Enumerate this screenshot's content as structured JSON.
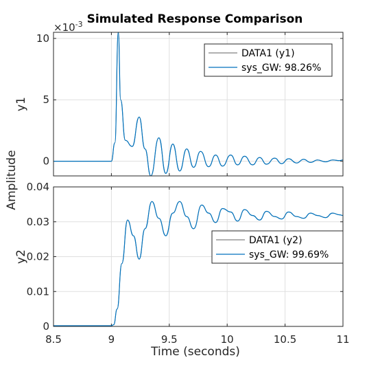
{
  "chart_data": [
    {
      "type": "line",
      "title": "Simulated Response Comparison",
      "xlabel": "Time (seconds)",
      "shared_ylabel": "Amplitude",
      "ylabel": "y1",
      "y_exponent_label": "×10",
      "y_exponent_power": "-3",
      "xlim": [
        8.5,
        11
      ],
      "ylim": [
        -1.2,
        10.5
      ],
      "xticks": [
        8.5,
        9,
        9.5,
        10,
        10.5,
        11
      ],
      "yticks": [
        0,
        5,
        10
      ],
      "ytick_labels": [
        "0",
        "5",
        "10"
      ],
      "grid": true,
      "legend_position": "top-right",
      "series": [
        {
          "name": "DATA1 (y1)",
          "color": "#808080",
          "x": [
            8.5,
            9.0,
            9.03,
            9.06,
            9.08,
            9.12,
            9.18,
            9.24,
            9.29,
            9.34,
            9.41,
            9.47,
            9.53,
            9.59,
            9.65,
            9.71,
            9.77,
            9.84,
            9.9,
            9.96,
            10.03,
            10.09,
            10.15,
            10.22,
            10.28,
            10.34,
            10.41,
            10.47,
            10.53,
            10.6,
            10.66,
            10.72,
            10.78,
            10.85,
            10.91,
            10.97,
            11.0
          ],
          "y": [
            0,
            0,
            1.5,
            10.5,
            5.0,
            1.7,
            1.2,
            3.6,
            1.0,
            -1.2,
            1.9,
            -1.0,
            1.4,
            -0.8,
            1.0,
            -0.5,
            0.8,
            -0.45,
            0.5,
            -0.4,
            0.5,
            -0.3,
            0.4,
            -0.3,
            0.3,
            -0.25,
            0.25,
            -0.2,
            0.2,
            -0.15,
            0.15,
            -0.1,
            0.1,
            -0.05,
            0.1,
            0.05,
            0.1
          ]
        },
        {
          "name": "sys_GW: 98.26%",
          "color": "#0072BD",
          "x": [
            8.5,
            9.0,
            9.03,
            9.06,
            9.08,
            9.12,
            9.18,
            9.24,
            9.29,
            9.34,
            9.41,
            9.47,
            9.53,
            9.59,
            9.65,
            9.71,
            9.77,
            9.84,
            9.9,
            9.96,
            10.03,
            10.09,
            10.15,
            10.22,
            10.28,
            10.34,
            10.41,
            10.47,
            10.53,
            10.6,
            10.66,
            10.72,
            10.78,
            10.85,
            10.91,
            10.97,
            11.0
          ],
          "y": [
            0,
            0,
            1.5,
            10.5,
            5.0,
            1.7,
            1.2,
            3.6,
            1.0,
            -1.2,
            1.9,
            -1.0,
            1.4,
            -0.8,
            1.0,
            -0.5,
            0.8,
            -0.45,
            0.5,
            -0.4,
            0.5,
            -0.3,
            0.4,
            -0.3,
            0.3,
            -0.25,
            0.25,
            -0.2,
            0.2,
            -0.15,
            0.15,
            -0.1,
            0.1,
            -0.05,
            0.1,
            0.05,
            0.1
          ]
        }
      ]
    },
    {
      "type": "line",
      "ylabel": "y2",
      "xlabel": "Time (seconds)",
      "xlim": [
        8.5,
        11
      ],
      "ylim": [
        0,
        0.04
      ],
      "xticks": [
        8.5,
        9,
        9.5,
        10,
        10.5,
        11
      ],
      "xtick_labels": [
        "8.5",
        "9",
        "9.5",
        "10",
        "10.5",
        "11"
      ],
      "yticks": [
        0,
        0.01,
        0.02,
        0.03,
        0.04
      ],
      "ytick_labels": [
        "0",
        "0.01",
        "0.02",
        "0.03",
        "0.04"
      ],
      "grid": true,
      "legend_position": "right",
      "series": [
        {
          "name": "DATA1 (y2)",
          "color": "#808080",
          "x": [
            8.5,
            9.0,
            9.02,
            9.05,
            9.09,
            9.14,
            9.19,
            9.24,
            9.29,
            9.35,
            9.41,
            9.47,
            9.53,
            9.59,
            9.65,
            9.71,
            9.78,
            9.84,
            9.9,
            9.96,
            10.03,
            10.09,
            10.15,
            10.22,
            10.28,
            10.34,
            10.41,
            10.47,
            10.53,
            10.6,
            10.66,
            10.72,
            10.78,
            10.85,
            10.91,
            10.97,
            11.0
          ],
          "y": [
            0.0002,
            0.0002,
            0.0005,
            0.005,
            0.018,
            0.0305,
            0.026,
            0.0193,
            0.028,
            0.0358,
            0.031,
            0.026,
            0.0325,
            0.0358,
            0.0315,
            0.028,
            0.0348,
            0.0325,
            0.0298,
            0.0338,
            0.0328,
            0.0302,
            0.0335,
            0.0318,
            0.0305,
            0.033,
            0.0315,
            0.0308,
            0.0328,
            0.0315,
            0.031,
            0.0325,
            0.0318,
            0.0312,
            0.0325,
            0.032,
            0.0318
          ]
        },
        {
          "name": "sys_GW: 99.69%",
          "color": "#0072BD",
          "x": [
            8.5,
            9.0,
            9.02,
            9.05,
            9.09,
            9.14,
            9.19,
            9.24,
            9.29,
            9.35,
            9.41,
            9.47,
            9.53,
            9.59,
            9.65,
            9.71,
            9.78,
            9.84,
            9.9,
            9.96,
            10.03,
            10.09,
            10.15,
            10.22,
            10.28,
            10.34,
            10.41,
            10.47,
            10.53,
            10.6,
            10.66,
            10.72,
            10.78,
            10.85,
            10.91,
            10.97,
            11.0
          ],
          "y": [
            0.0002,
            0.0002,
            0.0005,
            0.005,
            0.018,
            0.0305,
            0.026,
            0.0193,
            0.028,
            0.0358,
            0.031,
            0.026,
            0.0325,
            0.0358,
            0.0315,
            0.028,
            0.0348,
            0.0325,
            0.0298,
            0.0338,
            0.0328,
            0.0302,
            0.0335,
            0.0318,
            0.0305,
            0.033,
            0.0315,
            0.0308,
            0.0328,
            0.0315,
            0.031,
            0.0325,
            0.0318,
            0.0312,
            0.0325,
            0.032,
            0.0318
          ]
        }
      ]
    }
  ]
}
